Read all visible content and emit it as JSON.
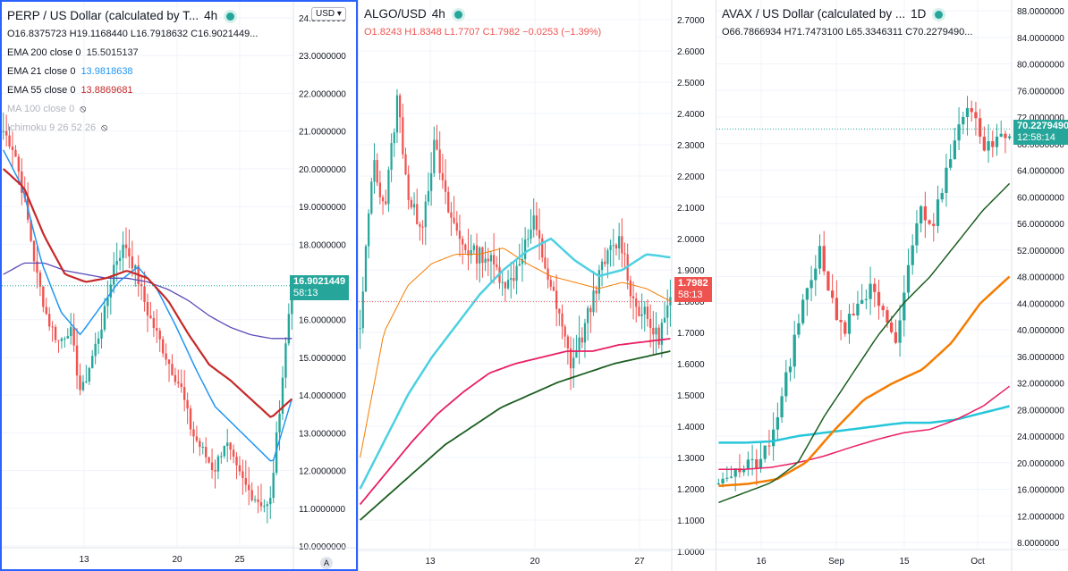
{
  "panes": [
    {
      "id": "p1",
      "title": "PERP / US Dollar (calculated by T...",
      "interval": "4h",
      "ohlc": {
        "o": "O16.8375723",
        "h": "H19.1168440",
        "l": "L16.7918632",
        "c": "C16.9021449..."
      },
      "indicators": [
        {
          "label": "EMA 200 close 0",
          "value": "15.5015137",
          "color": "#2a2e39"
        },
        {
          "label": "EMA 21 close 0",
          "value": "13.9818638",
          "color": "#2196f3"
        },
        {
          "label": "EMA 55 close 0",
          "value": "13.8869681",
          "color": "#c62828"
        },
        {
          "label": "MA 100 close 0",
          "value": "",
          "color": "#b2b5be"
        },
        {
          "label": "Ichimoku 9 26 52 26",
          "value": "",
          "color": "#b2b5be"
        }
      ],
      "currency_button": "USD",
      "auto_badge": "A",
      "price_tag": {
        "price": "16.9021449",
        "countdown": "58:13",
        "color": "#26a69a"
      },
      "y_ticks": [
        "24.0000000",
        "23.0000000",
        "22.0000000",
        "21.0000000",
        "20.0000000",
        "19.0000000",
        "18.0000000",
        "17.0000000",
        "16.0000000",
        "15.0000000",
        "14.0000000",
        "13.0000000",
        "12.0000000",
        "11.0000000",
        "10.0000000"
      ],
      "y_min": 10,
      "y_max": 24,
      "x_ticks": [
        "13",
        "20",
        "25"
      ]
    },
    {
      "id": "p2",
      "title": "ALGO/USD",
      "interval": "4h",
      "ohlc": {
        "o": "O1.8243",
        "h": "H1.8348",
        "l": "L1.7707",
        "c": "C1.7982",
        "chg": "−0.0253 (−1.39%)"
      },
      "price_tag": {
        "price": "1.7982",
        "countdown": "58:13",
        "color": "#ef5350"
      },
      "y_ticks": [
        "2.7000",
        "2.6000",
        "2.5000",
        "2.4000",
        "2.3000",
        "2.2000",
        "2.1000",
        "2.0000",
        "1.9000",
        "1.8000",
        "1.7000",
        "1.6000",
        "1.5000",
        "1.4000",
        "1.3000",
        "1.2000",
        "1.1000",
        "1.0000"
      ],
      "y_min": 1.0,
      "y_max": 2.7,
      "x_ticks": [
        "13",
        "20",
        "27"
      ]
    },
    {
      "id": "p3",
      "title": "AVAX / US Dollar (calculated by ...",
      "interval": "1D",
      "ohlc": {
        "o": "O66.7866934",
        "h": "H71.7473100",
        "l": "L65.3346311",
        "c": "C70.2279490..."
      },
      "price_tag": {
        "price": "70.2279490",
        "countdown": "12:58:14",
        "color": "#26a69a"
      },
      "y_ticks": [
        "88.0000000",
        "84.0000000",
        "80.0000000",
        "76.0000000",
        "72.0000000",
        "68.0000000",
        "64.0000000",
        "60.0000000",
        "56.0000000",
        "52.0000000",
        "48.0000000",
        "44.0000000",
        "40.0000000",
        "36.0000000",
        "32.0000000",
        "28.0000000",
        "24.0000000",
        "20.0000000",
        "16.0000000",
        "12.0000000",
        "8.0000000"
      ],
      "y_min": 8,
      "y_max": 88,
      "x_ticks": [
        "16",
        "Sep",
        "15",
        "Oct"
      ]
    }
  ],
  "colors": {
    "up": "#26a69a",
    "down": "#ef5350",
    "grid": "#f0f3fa",
    "axis_text": "#131722"
  }
}
